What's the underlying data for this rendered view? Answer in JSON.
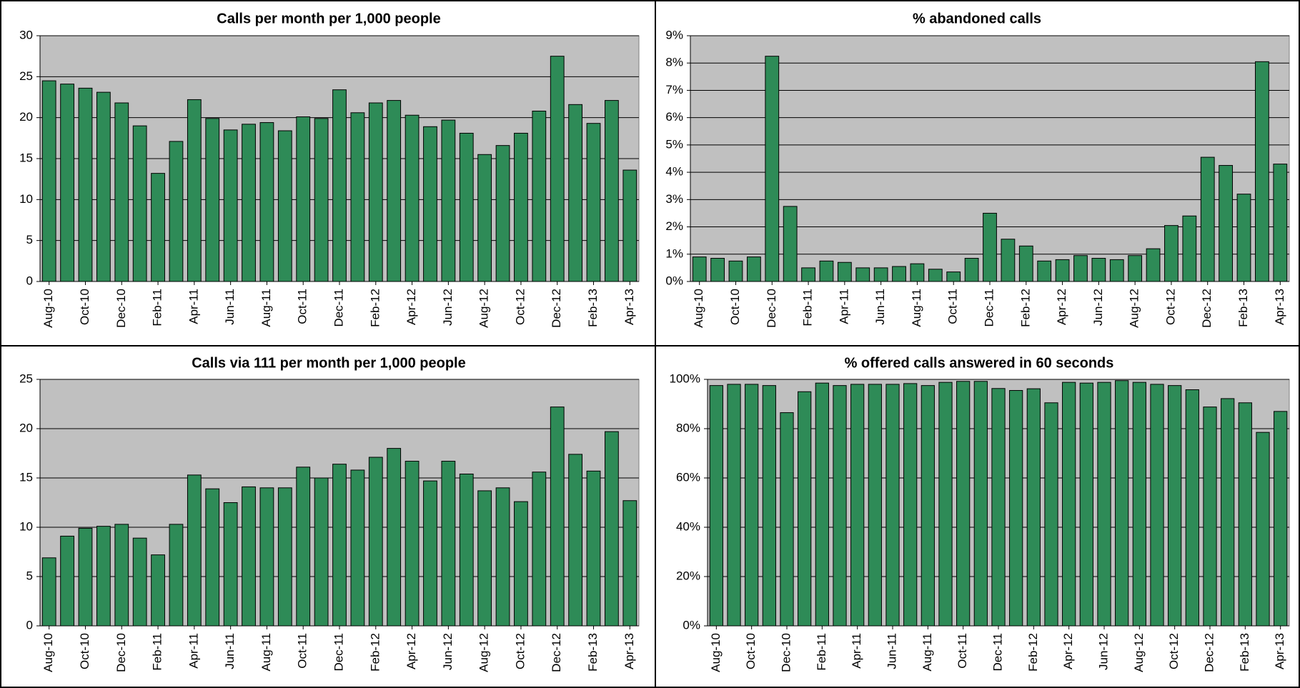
{
  "chart_data": [
    {
      "type": "bar",
      "title": "Calls per month per 1,000 people",
      "categories": [
        "Aug-10",
        null,
        "Oct-10",
        null,
        "Dec-10",
        null,
        "Feb-11",
        null,
        "Apr-11",
        null,
        "Jun-11",
        null,
        "Aug-11",
        null,
        "Oct-11",
        null,
        "Dec-11",
        null,
        "Feb-12",
        null,
        "Apr-12",
        null,
        "Jun-12",
        null,
        "Aug-12",
        null,
        "Oct-12",
        null,
        "Dec-12",
        null,
        "Feb-13",
        null,
        "Apr-13"
      ],
      "values": [
        24.5,
        24.1,
        23.6,
        23.1,
        21.8,
        19.0,
        13.2,
        17.1,
        22.2,
        19.9,
        18.5,
        19.2,
        19.4,
        18.4,
        20.1,
        19.9,
        23.4,
        20.6,
        21.8,
        22.1,
        20.3,
        18.9,
        19.7,
        18.1,
        15.5,
        16.6,
        18.1,
        20.8,
        27.5,
        21.6,
        19.3,
        22.1,
        13.6
      ],
      "color": "#2e8b57",
      "ylim": [
        0,
        30
      ],
      "yticks": [
        0,
        5,
        10,
        15,
        20,
        25,
        30
      ],
      "grid": true
    },
    {
      "type": "bar",
      "title": "% abandoned calls",
      "categories": [
        "Aug-10",
        null,
        "Oct-10",
        null,
        "Dec-10",
        null,
        "Feb-11",
        null,
        "Apr-11",
        null,
        "Jun-11",
        null,
        "Aug-11",
        null,
        "Oct-11",
        null,
        "Dec-11",
        null,
        "Feb-12",
        null,
        "Apr-12",
        null,
        "Jun-12",
        null,
        "Aug-12",
        null,
        "Oct-12",
        null,
        "Dec-12",
        null,
        "Feb-13",
        null,
        "Apr-13"
      ],
      "values": [
        0.9,
        0.85,
        0.75,
        0.9,
        8.25,
        2.75,
        0.5,
        0.75,
        0.7,
        0.5,
        0.5,
        0.55,
        0.65,
        0.45,
        0.35,
        0.85,
        2.5,
        1.55,
        1.3,
        0.75,
        0.8,
        0.95,
        0.85,
        0.8,
        0.95,
        1.2,
        2.05,
        2.4,
        4.55,
        4.25,
        3.2,
        8.05,
        4.3
      ],
      "color": "#2e8b57",
      "ylim": [
        0,
        9
      ],
      "yticks": [
        {
          "value": 0,
          "label": "0%"
        },
        {
          "value": 1,
          "label": "1%"
        },
        {
          "value": 2,
          "label": "2%"
        },
        {
          "value": 3,
          "label": "3%"
        },
        {
          "value": 4,
          "label": "4%"
        },
        {
          "value": 5,
          "label": "5%"
        },
        {
          "value": 6,
          "label": "6%"
        },
        {
          "value": 7,
          "label": "7%"
        },
        {
          "value": 8,
          "label": "8%"
        },
        {
          "value": 9,
          "label": "9%"
        }
      ],
      "grid": true
    },
    {
      "type": "bar",
      "title": "Calls via 111 per month per 1,000 people",
      "categories": [
        "Aug-10",
        null,
        "Oct-10",
        null,
        "Dec-10",
        null,
        "Feb-11",
        null,
        "Apr-11",
        null,
        "Jun-11",
        null,
        "Aug-11",
        null,
        "Oct-11",
        null,
        "Dec-11",
        null,
        "Feb-12",
        null,
        "Apr-12",
        null,
        "Jun-12",
        null,
        "Aug-12",
        null,
        "Oct-12",
        null,
        "Dec-12",
        null,
        "Feb-13",
        null,
        "Apr-13"
      ],
      "values": [
        6.9,
        9.1,
        9.9,
        10.1,
        10.3,
        8.9,
        7.2,
        10.3,
        15.3,
        13.9,
        12.5,
        14.1,
        14.0,
        14.0,
        16.1,
        15.0,
        16.4,
        15.8,
        17.1,
        18.0,
        16.7,
        14.7,
        16.7,
        15.4,
        13.7,
        14.0,
        12.6,
        15.6,
        22.2,
        17.4,
        15.7,
        19.7,
        12.7
      ],
      "color": "#2e8b57",
      "ylim": [
        0,
        25
      ],
      "yticks": [
        0,
        5,
        10,
        15,
        20,
        25
      ],
      "grid": true
    },
    {
      "type": "bar",
      "title": "% offered calls answered in 60 seconds",
      "categories": [
        "Aug-10",
        null,
        "Oct-10",
        null,
        "Dec-10",
        null,
        "Feb-11",
        null,
        "Apr-11",
        null,
        "Jun-11",
        null,
        "Aug-11",
        null,
        "Oct-11",
        null,
        "Dec-11",
        null,
        "Feb-12",
        null,
        "Apr-12",
        null,
        "Jun-12",
        null,
        "Aug-12",
        null,
        "Oct-12",
        null,
        "Dec-12",
        null,
        "Feb-13",
        null,
        "Apr-13"
      ],
      "values": [
        97.5,
        98,
        98,
        97.5,
        86.5,
        95,
        98.5,
        97.5,
        98,
        98,
        98,
        98.3,
        97.5,
        98.8,
        99.2,
        99.2,
        96.3,
        95.5,
        96.2,
        90.5,
        98.8,
        98.5,
        98.8,
        99.5,
        98.8,
        98,
        97.5,
        95.8,
        88.8,
        92.2,
        90.5,
        78.5,
        87
      ],
      "color": "#2e8b57",
      "ylim": [
        0,
        100
      ],
      "yticks": [
        {
          "value": 0,
          "label": "0%"
        },
        {
          "value": 20,
          "label": "20%"
        },
        {
          "value": 40,
          "label": "40%"
        },
        {
          "value": 60,
          "label": "60%"
        },
        {
          "value": 80,
          "label": "80%"
        },
        {
          "value": 100,
          "label": "100%"
        }
      ],
      "grid": true
    }
  ]
}
